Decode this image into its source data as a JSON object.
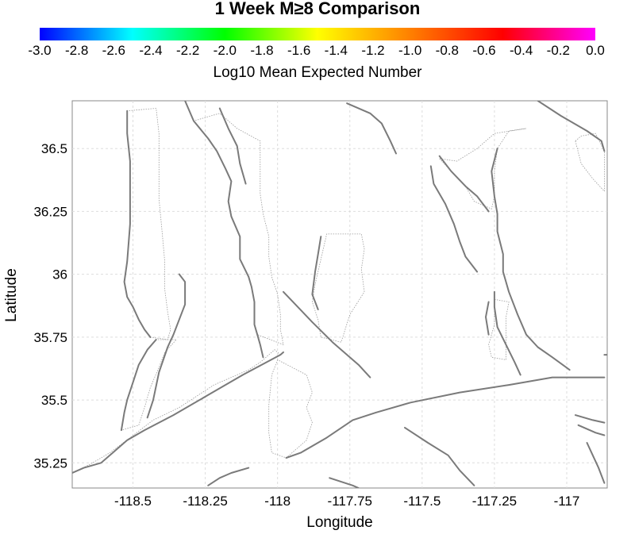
{
  "title": "1 Week M≥8 Comparison",
  "colorbar": {
    "label": "Log10 Mean Expected Number",
    "ticks": [
      "-3.0",
      "-2.8",
      "-2.6",
      "-2.4",
      "-2.2",
      "-2.0",
      "-1.8",
      "-1.6",
      "-1.4",
      "-1.2",
      "-1.0",
      "-0.8",
      "-0.6",
      "-0.4",
      "-0.2",
      "0.0"
    ],
    "min": -3.0,
    "max": 0.0,
    "colors": [
      "#0000ff",
      "#00ffff",
      "#00ff00",
      "#ffff00",
      "#ff8000",
      "#ff0000",
      "#ff00ff"
    ]
  },
  "axes": {
    "xlabel": "Longitude",
    "ylabel": "Latitude",
    "xlim": [
      -118.71,
      -116.86
    ],
    "ylim": [
      35.15,
      36.69
    ],
    "xticks": [
      {
        "value": -118.5,
        "label": "-118.5"
      },
      {
        "value": -118.25,
        "label": "-118.25"
      },
      {
        "value": -118.0,
        "label": "-118"
      },
      {
        "value": -117.75,
        "label": "-117.75"
      },
      {
        "value": -117.5,
        "label": "-117.5"
      },
      {
        "value": -117.25,
        "label": "-117.25"
      },
      {
        "value": -117.0,
        "label": "-117"
      }
    ],
    "yticks": [
      {
        "value": 35.25,
        "label": "35.25"
      },
      {
        "value": 35.5,
        "label": "35.5"
      },
      {
        "value": 35.75,
        "label": "35.75"
      },
      {
        "value": 36.0,
        "label": "36"
      },
      {
        "value": 36.25,
        "label": "36.25"
      },
      {
        "value": 36.5,
        "label": "36.5"
      }
    ],
    "grid": true
  },
  "map_data": {
    "fault_traces": [
      [
        [
          -118.32,
          36.69
        ],
        [
          -118.29,
          36.61
        ],
        [
          -118.24,
          36.54
        ],
        [
          -118.21,
          36.49
        ],
        [
          -118.18,
          36.42
        ],
        [
          -118.16,
          36.37
        ],
        [
          -118.17,
          36.29
        ],
        [
          -118.16,
          36.23
        ],
        [
          -118.13,
          36.15
        ],
        [
          -118.13,
          36.06
        ],
        [
          -118.1,
          35.99
        ],
        [
          -118.09,
          35.95
        ],
        [
          -118.08,
          35.89
        ],
        [
          -118.08,
          35.85
        ],
        [
          -118.08,
          35.8
        ],
        [
          -118.07,
          35.76
        ],
        [
          -118.06,
          35.72
        ],
        [
          -118.05,
          35.67
        ]
      ],
      [
        [
          -118.2,
          36.66
        ],
        [
          -118.17,
          36.58
        ],
        [
          -118.14,
          36.51
        ],
        [
          -118.13,
          36.44
        ],
        [
          -118.11,
          36.36
        ]
      ],
      [
        [
          -118.52,
          36.65
        ],
        [
          -118.52,
          36.56
        ],
        [
          -118.51,
          36.45
        ],
        [
          -118.51,
          36.35
        ],
        [
          -118.51,
          36.2
        ],
        [
          -118.52,
          36.05
        ],
        [
          -118.53,
          35.97
        ],
        [
          -118.52,
          35.91
        ],
        [
          -118.5,
          35.87
        ],
        [
          -118.48,
          35.82
        ],
        [
          -118.46,
          35.78
        ],
        [
          -118.44,
          35.75
        ]
      ],
      [
        [
          -118.42,
          35.74
        ],
        [
          -118.45,
          35.7
        ],
        [
          -118.48,
          35.64
        ],
        [
          -118.5,
          35.57
        ],
        [
          -118.52,
          35.5
        ],
        [
          -118.53,
          35.45
        ],
        [
          -118.54,
          35.38
        ]
      ],
      [
        [
          -118.34,
          36.0
        ],
        [
          -118.32,
          35.97
        ],
        [
          -118.32,
          35.88
        ],
        [
          -118.34,
          35.82
        ],
        [
          -118.36,
          35.76
        ],
        [
          -118.38,
          35.71
        ],
        [
          -118.41,
          35.61
        ],
        [
          -118.43,
          35.5
        ],
        [
          -118.45,
          35.43
        ]
      ],
      [
        [
          -118.71,
          35.21
        ],
        [
          -118.67,
          35.23
        ],
        [
          -118.61,
          35.25
        ],
        [
          -118.57,
          35.29
        ],
        [
          -118.52,
          35.34
        ],
        [
          -118.46,
          35.38
        ],
        [
          -118.36,
          35.44
        ],
        [
          -118.24,
          35.52
        ],
        [
          -118.12,
          35.6
        ],
        [
          -117.99,
          35.68
        ],
        [
          -117.98,
          35.69
        ]
      ],
      [
        [
          -117.98,
          35.93
        ],
        [
          -117.88,
          35.81
        ],
        [
          -117.81,
          35.73
        ],
        [
          -117.72,
          35.64
        ],
        [
          -117.68,
          35.59
        ]
      ],
      [
        [
          -117.97,
          35.27
        ],
        [
          -117.92,
          35.29
        ],
        [
          -117.83,
          35.35
        ],
        [
          -117.74,
          35.42
        ],
        [
          -117.66,
          35.45
        ],
        [
          -117.54,
          35.49
        ],
        [
          -117.37,
          35.53
        ],
        [
          -117.2,
          35.56
        ],
        [
          -117.05,
          35.59
        ],
        [
          -116.87,
          35.59
        ]
      ],
      [
        [
          -117.76,
          36.68
        ],
        [
          -117.68,
          36.64
        ],
        [
          -117.64,
          36.6
        ],
        [
          -117.61,
          36.53
        ],
        [
          -117.59,
          36.48
        ]
      ],
      [
        [
          -117.1,
          36.69
        ],
        [
          -117.02,
          36.63
        ],
        [
          -116.93,
          36.57
        ],
        [
          -116.88,
          36.53
        ],
        [
          -116.87,
          36.49
        ]
      ],
      [
        [
          -117.47,
          36.43
        ],
        [
          -117.46,
          36.36
        ],
        [
          -117.42,
          36.28
        ],
        [
          -117.39,
          36.2
        ],
        [
          -117.37,
          36.13
        ],
        [
          -117.35,
          36.07
        ],
        [
          -117.31,
          36.01
        ]
      ],
      [
        [
          -117.44,
          36.47
        ],
        [
          -117.4,
          36.41
        ],
        [
          -117.35,
          36.35
        ],
        [
          -117.31,
          36.31
        ],
        [
          -117.27,
          36.25
        ]
      ],
      [
        [
          -117.24,
          36.5
        ],
        [
          -117.26,
          36.41
        ],
        [
          -117.25,
          36.31
        ],
        [
          -117.24,
          36.24
        ],
        [
          -117.24,
          36.17
        ],
        [
          -117.22,
          36.08
        ],
        [
          -117.22,
          36.01
        ],
        [
          -117.2,
          35.93
        ],
        [
          -117.17,
          35.84
        ],
        [
          -117.14,
          35.76
        ],
        [
          -117.1,
          35.71
        ],
        [
          -117.05,
          35.67
        ],
        [
          -116.99,
          35.62
        ]
      ],
      [
        [
          -117.25,
          35.93
        ],
        [
          -117.25,
          35.87
        ],
        [
          -117.24,
          35.79
        ],
        [
          -117.21,
          35.72
        ],
        [
          -117.18,
          35.65
        ],
        [
          -117.16,
          35.6
        ]
      ],
      [
        [
          -117.27,
          35.89
        ],
        [
          -117.28,
          35.83
        ],
        [
          -117.27,
          35.76
        ]
      ],
      [
        [
          -117.85,
          36.15
        ],
        [
          -117.86,
          36.08
        ],
        [
          -117.87,
          36.01
        ],
        [
          -117.88,
          35.92
        ],
        [
          -117.86,
          35.86
        ]
      ],
      [
        [
          -117.56,
          35.39
        ],
        [
          -117.48,
          35.33
        ],
        [
          -117.41,
          35.28
        ],
        [
          -117.37,
          35.22
        ],
        [
          -117.32,
          35.16
        ]
      ],
      [
        [
          -117.82,
          35.19
        ],
        [
          -117.74,
          35.16
        ],
        [
          -117.72,
          35.15
        ]
      ],
      [
        [
          -116.97,
          35.44
        ],
        [
          -116.91,
          35.42
        ],
        [
          -116.87,
          35.41
        ]
      ],
      [
        [
          -116.96,
          35.4
        ],
        [
          -116.9,
          35.37
        ],
        [
          -116.87,
          35.36
        ]
      ],
      [
        [
          -116.93,
          35.33
        ],
        [
          -116.91,
          35.28
        ],
        [
          -116.89,
          35.23
        ],
        [
          -116.87,
          35.17
        ]
      ],
      [
        [
          -118.1,
          35.23
        ],
        [
          -118.16,
          35.21
        ],
        [
          -118.2,
          35.19
        ],
        [
          -118.24,
          35.16
        ]
      ],
      [
        [
          -116.87,
          35.68
        ],
        [
          -116.86,
          35.68
        ]
      ]
    ],
    "rupture_panels": [
      [
        [
          -118.52,
          36.65
        ],
        [
          -118.52,
          36.56
        ],
        [
          -118.51,
          36.45
        ],
        [
          -118.51,
          36.35
        ],
        [
          -118.51,
          36.2
        ],
        [
          -118.52,
          36.05
        ],
        [
          -118.53,
          35.97
        ],
        [
          -118.52,
          35.91
        ],
        [
          -118.5,
          35.87
        ],
        [
          -118.48,
          35.82
        ],
        [
          -118.46,
          35.78
        ],
        [
          -118.44,
          35.75
        ],
        [
          -118.38,
          35.74
        ],
        [
          -118.37,
          35.78
        ],
        [
          -118.38,
          35.85
        ],
        [
          -118.39,
          35.94
        ],
        [
          -118.39,
          36.05
        ],
        [
          -118.4,
          36.18
        ],
        [
          -118.41,
          36.3
        ],
        [
          -118.41,
          36.45
        ],
        [
          -118.41,
          36.56
        ],
        [
          -118.42,
          36.66
        ]
      ],
      [
        [
          -118.42,
          35.74
        ],
        [
          -118.45,
          35.7
        ],
        [
          -118.48,
          35.64
        ],
        [
          -118.5,
          35.57
        ],
        [
          -118.52,
          35.5
        ],
        [
          -118.53,
          35.45
        ],
        [
          -118.54,
          35.38
        ],
        [
          -118.48,
          35.4
        ],
        [
          -118.46,
          35.47
        ],
        [
          -118.44,
          35.55
        ],
        [
          -118.41,
          35.63
        ],
        [
          -118.39,
          35.69
        ],
        [
          -118.35,
          35.74
        ]
      ],
      [
        [
          -118.71,
          35.21
        ],
        [
          -118.67,
          35.23
        ],
        [
          -118.61,
          35.25
        ],
        [
          -118.57,
          35.29
        ],
        [
          -118.52,
          35.34
        ],
        [
          -118.46,
          35.38
        ],
        [
          -118.36,
          35.44
        ],
        [
          -118.24,
          35.52
        ],
        [
          -118.12,
          35.6
        ],
        [
          -117.99,
          35.68
        ],
        [
          -118.01,
          35.7
        ],
        [
          -118.06,
          35.65
        ],
        [
          -118.1,
          35.62
        ],
        [
          -118.22,
          35.56
        ],
        [
          -118.34,
          35.47
        ],
        [
          -118.43,
          35.42
        ],
        [
          -118.51,
          35.35
        ],
        [
          -118.58,
          35.29
        ],
        [
          -118.64,
          35.25
        ],
        [
          -118.69,
          35.22
        ]
      ],
      [
        [
          -118.29,
          36.61
        ],
        [
          -118.24,
          36.54
        ],
        [
          -118.21,
          36.49
        ],
        [
          -118.18,
          36.42
        ],
        [
          -118.16,
          36.37
        ],
        [
          -118.17,
          36.29
        ],
        [
          -118.16,
          36.23
        ],
        [
          -118.13,
          36.15
        ],
        [
          -118.13,
          36.06
        ],
        [
          -118.1,
          35.99
        ],
        [
          -118.09,
          35.95
        ],
        [
          -118.08,
          35.89
        ],
        [
          -118.08,
          35.85
        ],
        [
          -118.08,
          35.8
        ],
        [
          -118.07,
          35.76
        ],
        [
          -117.98,
          35.72
        ],
        [
          -117.99,
          35.78
        ],
        [
          -117.99,
          35.84
        ],
        [
          -118.0,
          35.92
        ],
        [
          -118.02,
          35.99
        ],
        [
          -118.03,
          36.07
        ],
        [
          -118.03,
          36.15
        ],
        [
          -118.05,
          36.24
        ],
        [
          -118.06,
          36.32
        ],
        [
          -118.06,
          36.43
        ],
        [
          -118.06,
          36.53
        ],
        [
          -118.14,
          36.58
        ],
        [
          -118.2,
          36.64
        ]
      ],
      [
        [
          -117.87,
          35.96
        ],
        [
          -117.88,
          35.89
        ],
        [
          -117.86,
          35.82
        ],
        [
          -117.85,
          35.75
        ],
        [
          -117.78,
          35.73
        ],
        [
          -117.75,
          35.84
        ],
        [
          -117.7,
          35.93
        ],
        [
          -117.71,
          36.02
        ],
        [
          -117.7,
          36.1
        ],
        [
          -117.71,
          36.16
        ],
        [
          -117.83,
          36.16
        ]
      ],
      [
        [
          -118.0,
          35.66
        ],
        [
          -118.02,
          35.6
        ],
        [
          -118.03,
          35.48
        ],
        [
          -118.03,
          35.37
        ],
        [
          -118.02,
          35.29
        ],
        [
          -117.97,
          35.27
        ],
        [
          -117.9,
          35.34
        ],
        [
          -117.88,
          35.41
        ],
        [
          -117.9,
          35.47
        ],
        [
          -117.88,
          35.53
        ],
        [
          -117.9,
          35.6
        ]
      ],
      [
        [
          -117.44,
          36.46
        ],
        [
          -117.4,
          36.41
        ],
        [
          -117.35,
          36.35
        ],
        [
          -117.32,
          36.29
        ],
        [
          -117.26,
          36.26
        ],
        [
          -117.25,
          36.31
        ],
        [
          -117.25,
          36.41
        ],
        [
          -117.24,
          36.5
        ],
        [
          -117.2,
          36.57
        ],
        [
          -117.14,
          36.58
        ],
        [
          -117.25,
          36.56
        ],
        [
          -117.31,
          36.5
        ],
        [
          -117.38,
          36.45
        ]
      ],
      [
        [
          -117.25,
          35.9
        ],
        [
          -117.25,
          35.8
        ],
        [
          -117.27,
          35.72
        ],
        [
          -117.26,
          35.67
        ],
        [
          -117.21,
          35.66
        ],
        [
          -117.21,
          35.75
        ],
        [
          -117.21,
          35.83
        ],
        [
          -117.2,
          35.89
        ]
      ],
      [
        [
          -116.97,
          36.53
        ],
        [
          -116.95,
          36.44
        ],
        [
          -116.91,
          36.38
        ],
        [
          -116.87,
          36.33
        ],
        [
          -116.87,
          36.49
        ],
        [
          -116.9,
          36.56
        ],
        [
          -116.95,
          36.55
        ]
      ]
    ]
  }
}
